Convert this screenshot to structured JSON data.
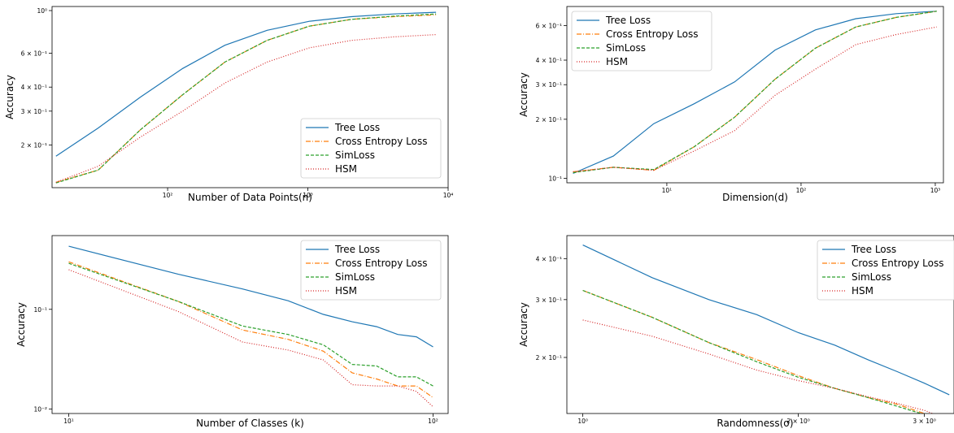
{
  "chart_data": [
    {
      "type": "line",
      "xlabel": "Number of Data Points(n)",
      "ylabel": "Accuracy",
      "xscale": "log",
      "yscale": "log",
      "xlim": [
        15,
        10000
      ],
      "ylim": [
        0.12,
        1.05
      ],
      "xticks": [
        {
          "v": 100,
          "t": "10²"
        },
        {
          "v": 1000,
          "t": "10³"
        },
        {
          "v": 10000,
          "t": "10⁴"
        }
      ],
      "yticks": [
        {
          "v": 1.0,
          "t": "10⁰"
        },
        {
          "v": 0.6,
          "t": "6 × 10⁻¹"
        },
        {
          "v": 0.4,
          "t": "4 × 10⁻¹"
        },
        {
          "v": 0.3,
          "t": "3 × 10⁻¹"
        },
        {
          "v": 0.2,
          "t": "2 × 10⁻¹"
        }
      ],
      "legend_position": "lower-right",
      "x": [
        16,
        32,
        64,
        128,
        256,
        512,
        1024,
        2048,
        4096,
        8192
      ],
      "series": [
        {
          "name": "Tree Loss",
          "color": "#1f77b4",
          "dash": "",
          "values": [
            0.175,
            0.245,
            0.355,
            0.5,
            0.66,
            0.79,
            0.88,
            0.93,
            0.96,
            0.98
          ]
        },
        {
          "name": "Cross Entropy Loss",
          "color": "#ff7f0e",
          "dash": "6,2,1,2",
          "values": [
            0.128,
            0.148,
            0.24,
            0.365,
            0.54,
            0.7,
            0.83,
            0.9,
            0.93,
            0.95
          ]
        },
        {
          "name": "SimLoss",
          "color": "#2ca02c",
          "dash": "4,2",
          "values": [
            0.127,
            0.148,
            0.24,
            0.365,
            0.54,
            0.7,
            0.83,
            0.9,
            0.935,
            0.96
          ]
        },
        {
          "name": "HSM",
          "color": "#d62728",
          "dash": "1,2",
          "values": [
            0.128,
            0.155,
            0.22,
            0.3,
            0.42,
            0.54,
            0.64,
            0.7,
            0.73,
            0.75
          ]
        }
      ]
    },
    {
      "type": "line",
      "xlabel": "Dimension(d)",
      "ylabel": "Accuracy",
      "xscale": "log",
      "yscale": "log",
      "xlim": [
        1.8,
        1150
      ],
      "ylim": [
        0.095,
        0.75
      ],
      "xticks": [
        {
          "v": 10,
          "t": "10¹"
        },
        {
          "v": 100,
          "t": "10²"
        },
        {
          "v": 1000,
          "t": "10³"
        }
      ],
      "yticks": [
        {
          "v": 0.6,
          "t": "6 × 10⁻¹"
        },
        {
          "v": 0.4,
          "t": "4 × 10⁻¹"
        },
        {
          "v": 0.3,
          "t": "3 × 10⁻¹"
        },
        {
          "v": 0.2,
          "t": "2 × 10⁻¹"
        },
        {
          "v": 0.1,
          "t": "10⁻¹"
        }
      ],
      "legend_position": "upper-left",
      "x": [
        2,
        4,
        8,
        16,
        32,
        64,
        128,
        256,
        512,
        1024
      ],
      "series": [
        {
          "name": "Tree Loss",
          "color": "#1f77b4",
          "dash": "",
          "values": [
            0.106,
            0.13,
            0.19,
            0.24,
            0.31,
            0.45,
            0.57,
            0.65,
            0.69,
            0.71
          ]
        },
        {
          "name": "Cross Entropy Loss",
          "color": "#ff7f0e",
          "dash": "6,2,1,2",
          "values": [
            0.108,
            0.114,
            0.11,
            0.145,
            0.205,
            0.32,
            0.46,
            0.59,
            0.66,
            0.71
          ]
        },
        {
          "name": "SimLoss",
          "color": "#2ca02c",
          "dash": "4,2",
          "values": [
            0.107,
            0.114,
            0.111,
            0.145,
            0.205,
            0.32,
            0.46,
            0.59,
            0.66,
            0.71
          ]
        },
        {
          "name": "HSM",
          "color": "#d62728",
          "dash": "1,2",
          "values": [
            0.108,
            0.114,
            0.11,
            0.138,
            0.175,
            0.265,
            0.36,
            0.48,
            0.54,
            0.59
          ]
        }
      ]
    },
    {
      "type": "line",
      "xlabel": "Number of Classes (k)",
      "ylabel": "Accuracy",
      "xscale": "log",
      "yscale": "log",
      "xlim": [
        9,
        110
      ],
      "ylim": [
        0.009,
        0.55
      ],
      "xticks": [
        {
          "v": 10,
          "t": "10¹"
        },
        {
          "v": 100,
          "t": "10²"
        }
      ],
      "yticks": [
        {
          "v": 0.1,
          "t": "10⁻¹"
        },
        {
          "v": 0.01,
          "t": "10⁻²"
        }
      ],
      "legend_position": "upper-right",
      "x": [
        10,
        20,
        30,
        40,
        50,
        60,
        70,
        80,
        90,
        100
      ],
      "series": [
        {
          "name": "Tree Loss",
          "color": "#1f77b4",
          "dash": "",
          "values": [
            0.43,
            0.225,
            0.16,
            0.122,
            0.089,
            0.075,
            0.067,
            0.056,
            0.053,
            0.042
          ]
        },
        {
          "name": "Cross Entropy Loss",
          "color": "#ff7f0e",
          "dash": "6,2,1,2",
          "values": [
            0.3,
            0.12,
            0.062,
            0.05,
            0.038,
            0.023,
            0.02,
            0.017,
            0.017,
            0.013
          ]
        },
        {
          "name": "SimLoss",
          "color": "#2ca02c",
          "dash": "4,2",
          "values": [
            0.29,
            0.12,
            0.068,
            0.056,
            0.044,
            0.028,
            0.027,
            0.021,
            0.021,
            0.017
          ]
        },
        {
          "name": "HSM",
          "color": "#d62728",
          "dash": "1,2",
          "values": [
            0.25,
            0.095,
            0.047,
            0.039,
            0.031,
            0.0175,
            0.017,
            0.017,
            0.015,
            0.0105
          ]
        }
      ]
    },
    {
      "type": "line",
      "xlabel": "Randomness(σ)",
      "ylabel": "Accuracy",
      "xscale": "log",
      "yscale": "log",
      "xlim": [
        0.95,
        3.3
      ],
      "ylim": [
        0.135,
        0.47
      ],
      "xticks": [
        {
          "v": 1,
          "t": "10⁰"
        },
        {
          "v": 2,
          "t": "2 × 10⁰"
        },
        {
          "v": 3,
          "t": "3 × 10⁰"
        }
      ],
      "yticks": [
        {
          "v": 0.4,
          "t": "4 × 10⁻¹"
        },
        {
          "v": 0.3,
          "t": "3 × 10⁻¹"
        },
        {
          "v": 0.2,
          "t": "2 × 10⁻¹"
        }
      ],
      "legend_position": "upper-right",
      "x": [
        1.0,
        1.25,
        1.5,
        1.75,
        2.0,
        2.25,
        2.5,
        2.75,
        3.0,
        3.25
      ],
      "series": [
        {
          "name": "Tree Loss",
          "color": "#1f77b4",
          "dash": "",
          "values": [
            0.44,
            0.35,
            0.3,
            0.27,
            0.238,
            0.218,
            0.197,
            0.181,
            0.167,
            0.154
          ]
        },
        {
          "name": "Cross Entropy Loss",
          "color": "#ff7f0e",
          "dash": "6,2,1,2",
          "values": [
            0.32,
            0.265,
            0.222,
            0.197,
            0.176,
            0.161,
            0.151,
            0.144,
            0.135,
            0.128
          ]
        },
        {
          "name": "SimLoss",
          "color": "#2ca02c",
          "dash": "4,2",
          "values": [
            0.32,
            0.265,
            0.222,
            0.194,
            0.174,
            0.161,
            0.151,
            0.142,
            0.134,
            0.125
          ]
        },
        {
          "name": "HSM",
          "color": "#d62728",
          "dash": "1,2",
          "values": [
            0.26,
            0.232,
            0.205,
            0.183,
            0.17,
            0.161,
            0.152,
            0.145,
            0.138,
            0.129
          ]
        }
      ]
    }
  ]
}
